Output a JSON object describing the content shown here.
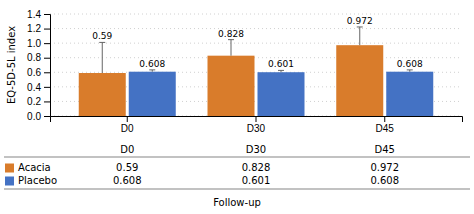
{
  "chart_data": {
    "type": "bar",
    "categories": [
      "D0",
      "D30",
      "D45"
    ],
    "series": [
      {
        "name": "Acacia",
        "color": "#d97c2b",
        "values": [
          0.59,
          0.828,
          0.972
        ],
        "errors": [
          0.42,
          0.22,
          0.25
        ]
      },
      {
        "name": "Placebo",
        "color": "#4472c4",
        "values": [
          0.608,
          0.601,
          0.608
        ],
        "errors": [
          0.025,
          0.025,
          0.025
        ]
      }
    ],
    "ylabel": "EQ-5D-5L index",
    "xlabel": "Follow-up",
    "ylim": [
      0,
      1.4
    ],
    "yticks": [
      {
        "value": 0,
        "label": "0.0"
      },
      0.2,
      0.4,
      0.6,
      0.8,
      {
        "value": 1,
        "label": "1.0"
      },
      1.2,
      1.4
    ],
    "grid": true,
    "data_labels": true,
    "legend": "bottom"
  }
}
